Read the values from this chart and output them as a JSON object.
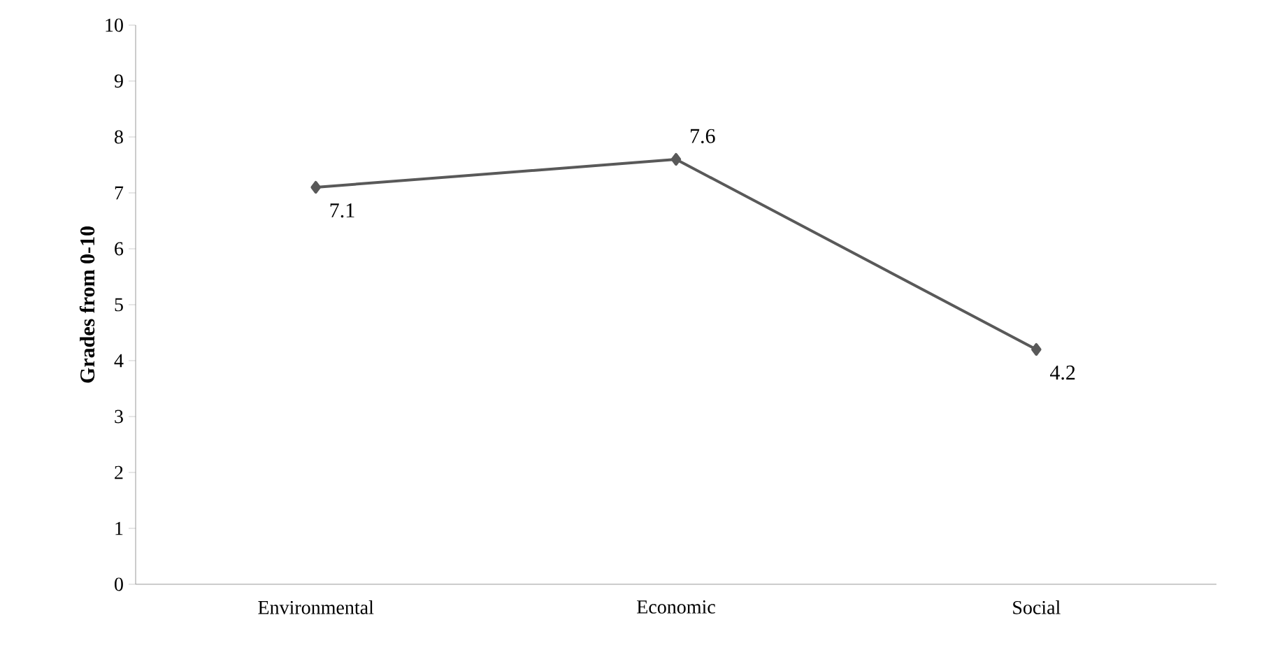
{
  "chart_data": {
    "type": "line",
    "ylabel": "Grades from 0-10",
    "categories": [
      "Environmental",
      "Economic",
      "Social"
    ],
    "values": [
      7.1,
      7.6,
      4.2
    ],
    "color": "#595959",
    "marker": "diamond",
    "line_style": "solid",
    "data_labels": true,
    "grid": false,
    "ylim": [
      0,
      10
    ],
    "yticks": [
      0,
      1,
      2,
      3,
      4,
      5,
      6,
      7,
      8,
      9,
      10
    ]
  }
}
